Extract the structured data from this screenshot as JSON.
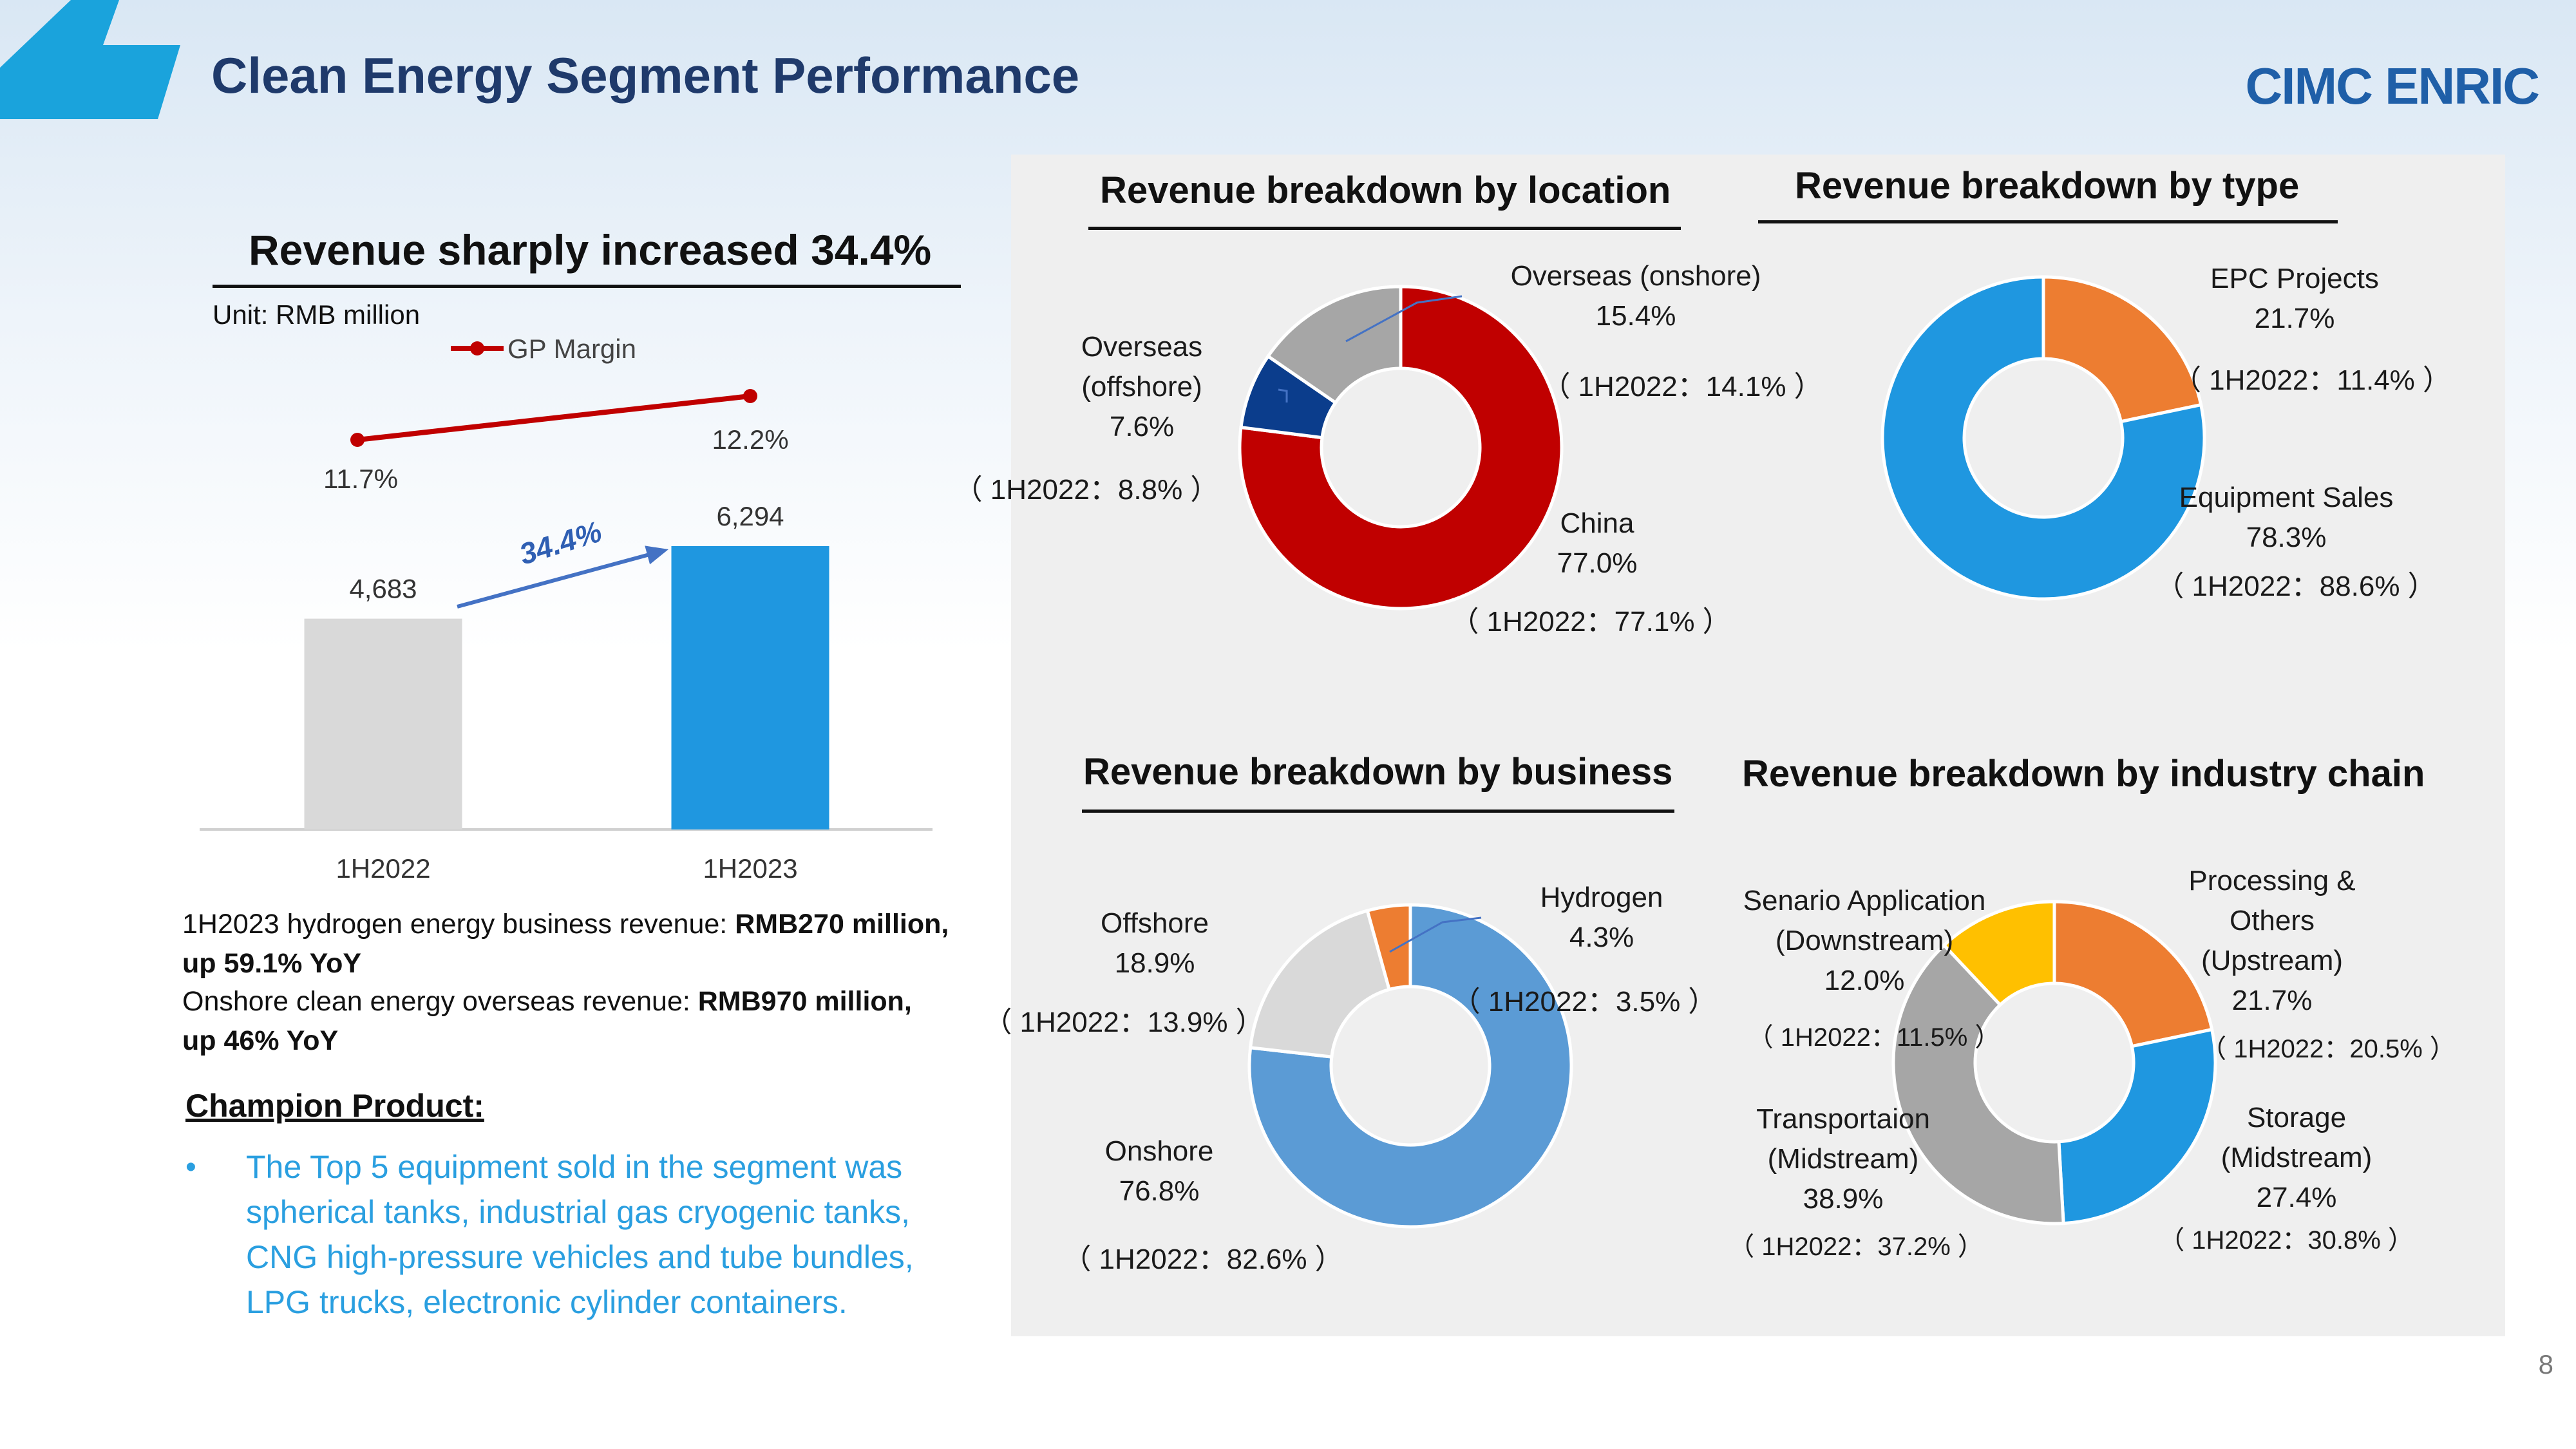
{
  "header": {
    "title": "Clean Energy Segment Performance",
    "logo": "CIMC ENRIC",
    "page_number": "8",
    "accent_color": "#1aa3dc"
  },
  "left": {
    "headline": "Revenue sharply increased 34.4%",
    "unit": "Unit: RMB million",
    "growth_label": "34.4%",
    "notes": [
      {
        "text": "1H2023 hydrogen energy business revenue: ",
        "bold": "RMB270 million,",
        "bold2": "up 59.1% YoY"
      },
      {
        "text": "Onshore clean energy overseas revenue: ",
        "bold": "RMB970 million,",
        "bold2": "up 46% YoY"
      }
    ],
    "champion_title": "Champion Product:",
    "champion_lines": [
      "The Top 5 equipment sold in the segment was",
      "spherical tanks, industrial gas cryogenic tanks,",
      "CNG high-pressure vehicles and tube bundles,",
      "LPG trucks, electronic cylinder containers."
    ]
  },
  "chart_data": [
    {
      "type": "bar",
      "categories": [
        "1H2022",
        "1H2023"
      ],
      "values": [
        4683,
        6294
      ],
      "value_labels": [
        "4,683",
        "6,294"
      ],
      "colors": [
        "#d9d9d9",
        "#1f97e0"
      ],
      "line_series": {
        "name": "GP Margin",
        "values": [
          11.7,
          12.2
        ],
        "labels": [
          "11.7%",
          "12.2%"
        ],
        "color": "#c00000"
      }
    },
    {
      "type": "pie",
      "title": "Revenue breakdown by location",
      "slices": [
        {
          "label": "China",
          "value": 77.0,
          "pct": "77.0%",
          "prior": "（ 1H2022：77.1% ）",
          "color": "#c00000"
        },
        {
          "label": "Overseas (offshore)",
          "value": 7.6,
          "pct": "7.6%",
          "prior": "（ 1H2022：8.8% ）",
          "color": "#0b3d8c"
        },
        {
          "label": "Overseas (onshore)",
          "value": 15.4,
          "pct": "15.4%",
          "prior": "（ 1H2022：14.1% ）",
          "color": "#a6a6a6"
        }
      ]
    },
    {
      "type": "pie",
      "title": "Revenue breakdown by type",
      "slices": [
        {
          "label": "EPC Projects",
          "value": 21.7,
          "pct": "21.7%",
          "prior": "（ 1H2022：11.4% ）",
          "color": "#ed7d31"
        },
        {
          "label": "Equipment Sales",
          "value": 78.3,
          "pct": "78.3%",
          "prior": "（ 1H2022：88.6% ）",
          "color": "#1f97e0"
        }
      ]
    },
    {
      "type": "pie",
      "title": "Revenue breakdown by business",
      "slices": [
        {
          "label": "Onshore",
          "value": 76.8,
          "pct": "76.8%",
          "prior": "（ 1H2022：82.6% ）",
          "color": "#5b9bd5"
        },
        {
          "label": "Offshore",
          "value": 18.9,
          "pct": "18.9%",
          "prior": "（ 1H2022：13.9% ）",
          "color": "#d9d9d9"
        },
        {
          "label": "Hydrogen",
          "value": 4.3,
          "pct": "4.3%",
          "prior": "（ 1H2022：3.5% ）",
          "color": "#ed7d31"
        }
      ]
    },
    {
      "type": "pie",
      "title": "Revenue breakdown by industry chain",
      "slices": [
        {
          "label": "Processing & Others (Upstream)",
          "value": 21.7,
          "pct": "21.7%",
          "prior": "（ 1H2022：20.5% ）",
          "color": "#ed7d31"
        },
        {
          "label": "Storage (Midstream)",
          "value": 27.4,
          "pct": "27.4%",
          "prior": "（ 1H2022：30.8% ）",
          "color": "#1f97e0"
        },
        {
          "label": "Transportaion (Midstream)",
          "value": 38.9,
          "pct": "38.9%",
          "prior": "（ 1H2022：37.2% ）",
          "color": "#a6a6a6"
        },
        {
          "label": "Senario Application (Downstream)",
          "value": 12.0,
          "pct": "12.0%",
          "prior": "（ 1H2022：11.5% ）",
          "color": "#ffc000"
        }
      ]
    }
  ],
  "labels": {
    "location": {
      "onshore": [
        "Overseas (onshore)",
        "15.4%"
      ],
      "offshore": [
        "Overseas",
        "(offshore)",
        "7.6%"
      ],
      "china": [
        "China",
        "77.0%"
      ]
    },
    "type": {
      "epc": [
        "EPC Projects",
        "21.7%"
      ],
      "equip": [
        "Equipment Sales",
        "78.3%"
      ]
    },
    "business": {
      "hydrogen": [
        "Hydrogen",
        "4.3%"
      ],
      "offshore": [
        "Offshore",
        "18.9%"
      ],
      "onshore": [
        "Onshore",
        "76.8%"
      ]
    },
    "chain": {
      "upstream": [
        "Processing &",
        "Others",
        "(Upstream)",
        "21.7%"
      ],
      "downstream": [
        "Senario Application",
        "(Downstream)",
        "12.0%"
      ],
      "transport": [
        "Transportaion",
        "(Midstream)",
        "38.9%"
      ],
      "storage": [
        "Storage",
        "(Midstream)",
        "27.4%"
      ]
    }
  }
}
